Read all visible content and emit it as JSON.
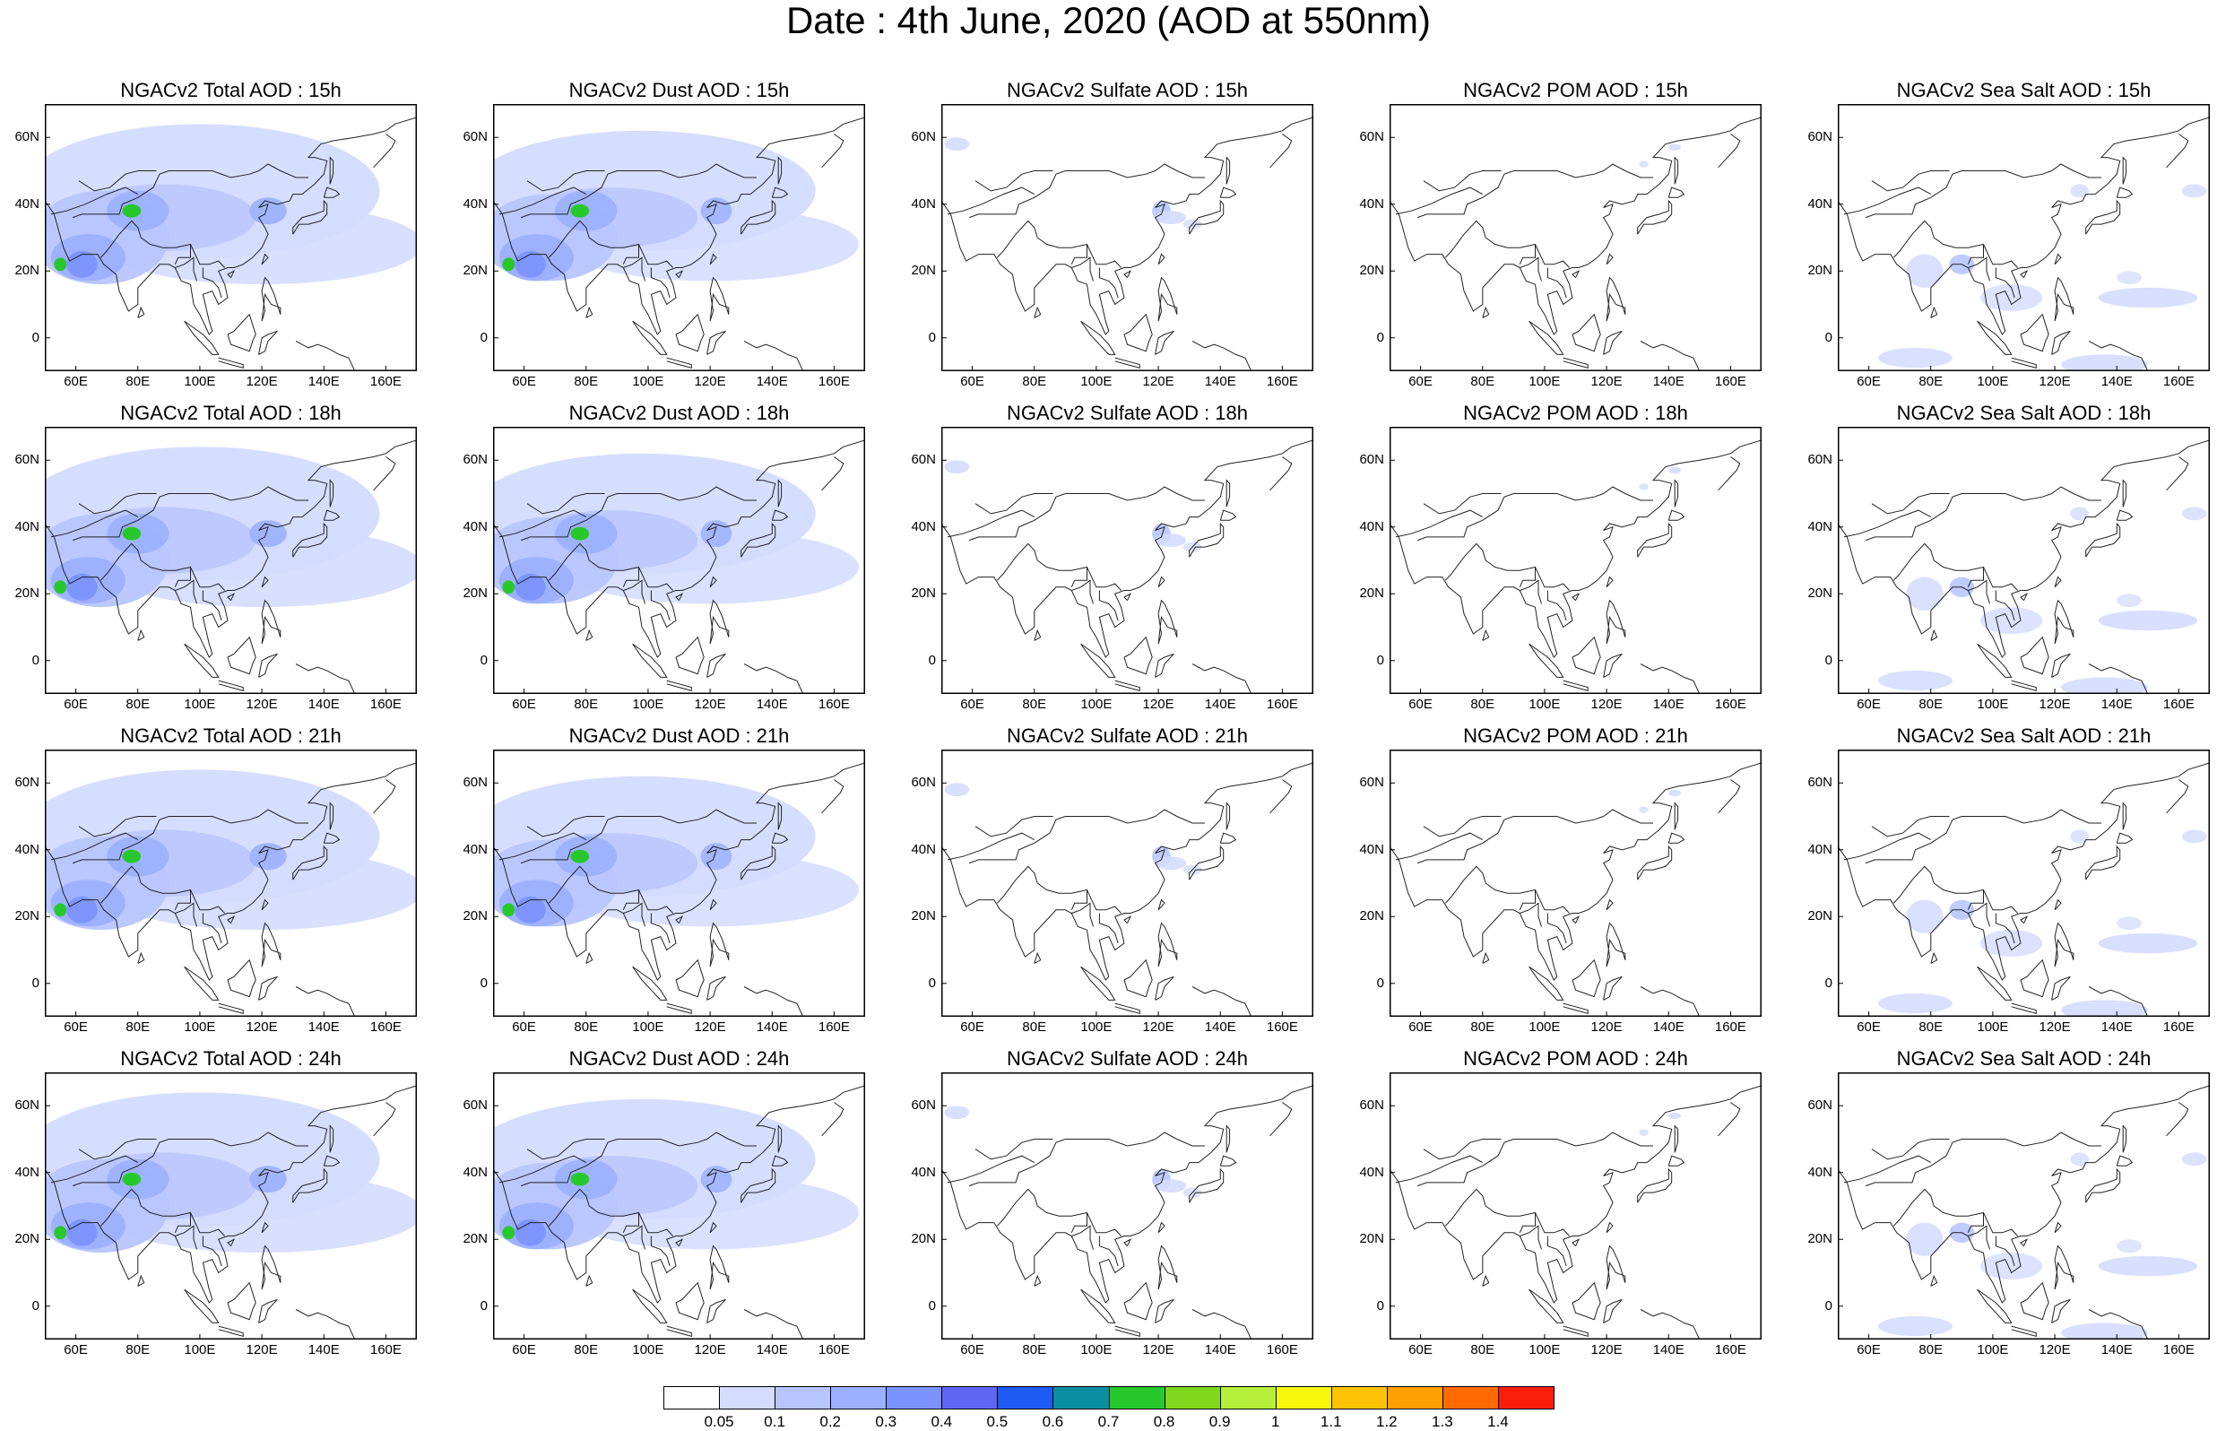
{
  "title": "Date : 4th June, 2020 (AOD at 550nm)",
  "columns": [
    {
      "id": "total",
      "label": "NGACv2 Total AOD"
    },
    {
      "id": "dust",
      "label": "NGACv2 Dust AOD"
    },
    {
      "id": "sulfate",
      "label": "NGACv2 Sulfate AOD"
    },
    {
      "id": "pom",
      "label": "NGACv2 POM AOD"
    },
    {
      "id": "seasalt",
      "label": "NGACv2 Sea Salt AOD"
    }
  ],
  "panels": [
    [
      "NGACv2 Total AOD : 15h",
      "NGACv2 Dust AOD : 15h",
      "NGACv2 Sulfate AOD : 15h",
      "NGACv2 POM AOD : 15h",
      "NGACv2 Sea Salt AOD : 15h"
    ],
    [
      "NGACv2 Total AOD : 18h",
      "NGACv2 Dust AOD : 18h",
      "NGACv2 Sulfate AOD : 18h",
      "NGACv2 POM AOD : 18h",
      "NGACv2 Sea Salt AOD : 18h"
    ],
    [
      "NGACv2 Total AOD : 21h",
      "NGACv2 Dust AOD : 21h",
      "NGACv2 Sulfate AOD : 21h",
      "NGACv2 POM AOD : 21h",
      "NGACv2 Sea Salt AOD : 21h"
    ],
    [
      "NGACv2 Total AOD : 24h",
      "NGACv2 Dust AOD : 24h",
      "NGACv2 Sulfate AOD : 24h",
      "NGACv2 POM AOD : 24h",
      "NGACv2 Sea Salt  AOD : 24h"
    ]
  ],
  "hours": [
    "15h",
    "18h",
    "21h",
    "24h"
  ],
  "axes": {
    "lat_ticks": [
      "60N",
      "40N",
      "20N",
      "0"
    ],
    "lon_ticks": [
      "60E",
      "80E",
      "100E",
      "120E",
      "140E",
      "160E"
    ],
    "lat_values": [
      60,
      40,
      20,
      0
    ],
    "lon_values": [
      60,
      80,
      100,
      120,
      140,
      160
    ],
    "lon_range": [
      50,
      170
    ],
    "lat_range": [
      -10,
      70
    ]
  },
  "colorbar": {
    "labels": [
      "0.05",
      "0.1",
      "0.2",
      "0.3",
      "0.4",
      "0.5",
      "0.6",
      "0.7",
      "0.8",
      "0.9",
      "1",
      "1.1",
      "1.2",
      "1.3",
      "1.4"
    ],
    "colors": [
      "#ffffff",
      "#d4dcff",
      "#b8c6ff",
      "#9bb0ff",
      "#7c92ff",
      "#5f66f3",
      "#1f5af5",
      "#0a8fa0",
      "#27c82c",
      "#7fd81b",
      "#b6f03a",
      "#f7f70a",
      "#ffc305",
      "#ff9f04",
      "#ff6a05",
      "#fa1e0a"
    ]
  },
  "colors": {
    "light": "#d4dcff",
    "mid": "#b8c6ff",
    "deep": "#9bb0ff",
    "strong": "#7c92ff",
    "hot": "#27c82c"
  }
}
